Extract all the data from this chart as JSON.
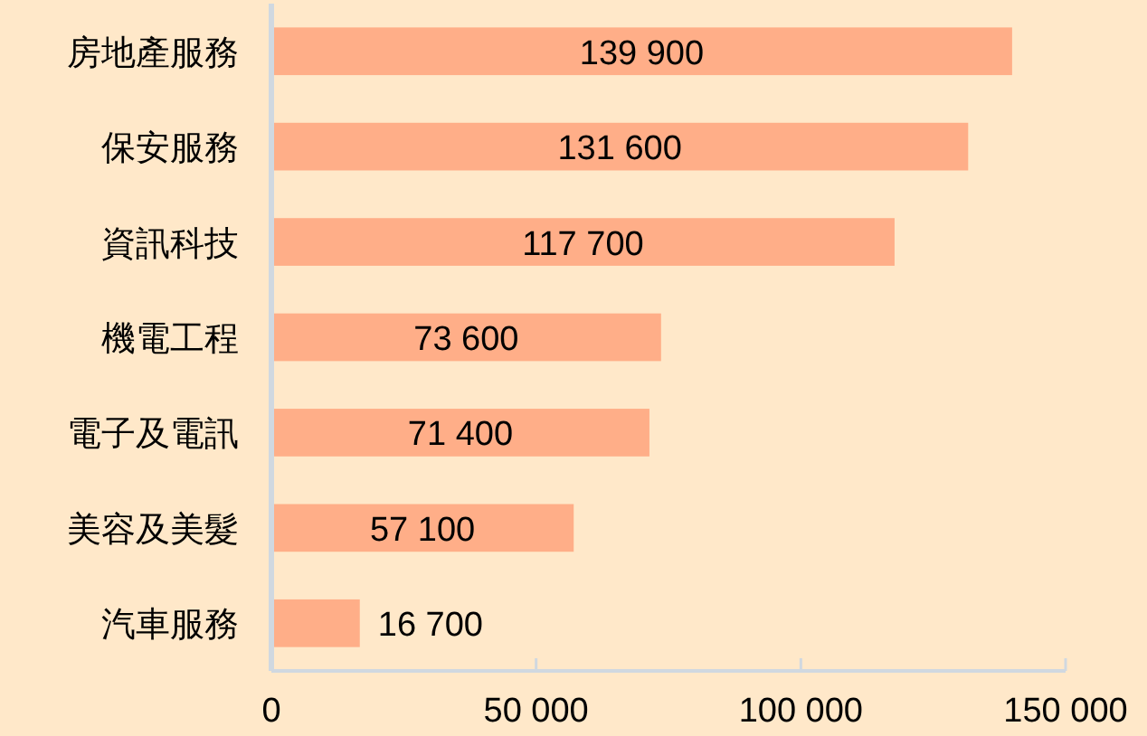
{
  "chart_data": {
    "type": "bar",
    "orientation": "horizontal",
    "categories": [
      "房地產服務",
      "保安服務",
      "資訊科技",
      "機電工程",
      "電子及電訊",
      "美容及美髮",
      "汽車服務"
    ],
    "values": [
      139900,
      131600,
      117700,
      73600,
      71400,
      57100,
      16700
    ],
    "value_labels": [
      "139 900",
      "131 600",
      "117 700",
      "73 600",
      "71 400",
      "57 100",
      "16 700"
    ],
    "color": "#ffae88",
    "xlim": [
      0,
      150000
    ],
    "xticks": [
      {
        "value": 0,
        "label": "0"
      },
      {
        "value": 50000,
        "label": "50 000"
      },
      {
        "value": 100000,
        "label": "100 000"
      },
      {
        "value": 150000,
        "label": "150 000"
      }
    ],
    "grid": false
  }
}
